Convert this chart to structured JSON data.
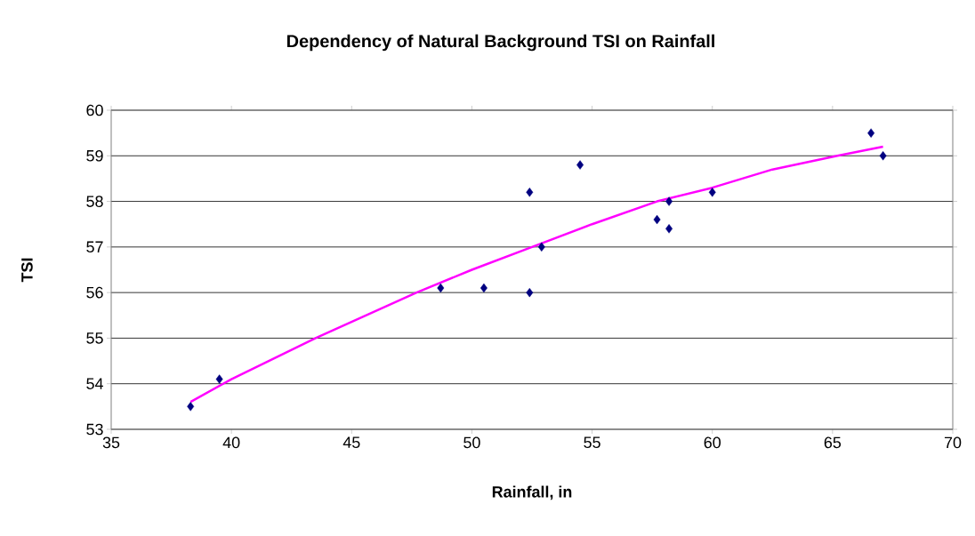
{
  "chart_data": {
    "type": "scatter",
    "title": "Dependency of Natural Background TSI on Rainfall",
    "xlabel": "Rainfall, in",
    "ylabel": "TSI",
    "series": [
      {
        "color": "#000080",
        "marker": "diamond",
        "x": [
          38.3,
          39.5,
          48.7,
          50.5,
          52.4,
          52.4,
          52.9,
          54.5,
          57.7,
          58.2,
          58.2,
          60.0,
          66.6,
          67.1
        ],
        "values": [
          53.5,
          54.1,
          56.1,
          56.1,
          58.2,
          56.0,
          57.0,
          58.8,
          57.6,
          58.0,
          57.4,
          58.2,
          59.5,
          59.0
        ]
      },
      {
        "type": "line",
        "color": "#ff00ff",
        "marker": "none",
        "x": [
          38.3,
          40,
          43.5,
          47.7,
          50,
          52.5,
          55,
          57.7,
          60,
          62.5,
          65.2,
          67.1
        ],
        "values": [
          53.6,
          54.1,
          55.0,
          56.0,
          56.5,
          57.0,
          57.5,
          58.0,
          58.3,
          58.7,
          59.0,
          59.2
        ]
      }
    ],
    "xlim": [
      35,
      70
    ],
    "xticks": [
      35,
      40,
      45,
      50,
      55,
      60,
      65,
      70
    ],
    "ylim": [
      53,
      60
    ],
    "yticks": [
      53,
      54,
      55,
      56,
      57,
      58,
      59,
      60
    ],
    "grid": "y"
  }
}
